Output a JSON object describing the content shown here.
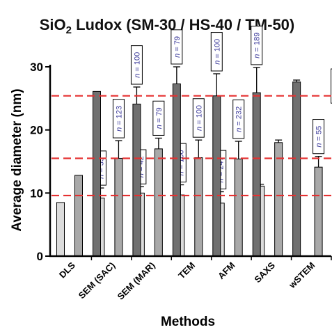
{
  "chart_data": {
    "type": "bar",
    "title_main": "SiO",
    "title_sub": "2",
    "title_rest": " Ludox (SM-30 / HS-40 / TM-50)",
    "xlabel": "Methods",
    "ylabel": "Average diameter (nm)",
    "ylim": [
      0,
      30
    ],
    "yticks": [
      0,
      10,
      20,
      30
    ],
    "categories": [
      "DLS",
      "SEM (SAC)",
      "SEM (MAR)",
      "TEM",
      "AFM",
      "SAXS",
      "wSTEM"
    ],
    "series": [
      {
        "name": "SM-30",
        "color": "#dcdcdc",
        "values": [
          8.5,
          9.2,
          10.0,
          9.7,
          8.4,
          11.1,
          null
        ],
        "errors": [
          0,
          1.6,
          1.0,
          1.6,
          1.8,
          0.3,
          null
        ],
        "n": [
          null,
          "35",
          "42",
          "100",
          "247",
          null,
          null
        ]
      },
      {
        "name": "HS-40",
        "color": "#a9a9a9",
        "values": [
          12.8,
          15.5,
          17.0,
          15.6,
          15.4,
          18.0,
          14.1
        ],
        "errors": [
          0,
          2.8,
          1.7,
          2.8,
          2.8,
          0.4,
          1.7
        ],
        "n": [
          null,
          "123",
          "79",
          "100",
          "232",
          null,
          "55"
        ]
      },
      {
        "name": "TM-50",
        "color": "#707070",
        "values": [
          26.1,
          24.1,
          27.3,
          25.4,
          25.9,
          27.6,
          22.0
        ],
        "errors": [
          0,
          2.7,
          2.7,
          3.5,
          4.0,
          0.3,
          1.8
        ],
        "n": [
          null,
          "100",
          "79",
          "100",
          "189",
          null,
          "30"
        ]
      }
    ],
    "reference_lines": [
      9.6,
      15.5,
      25.4
    ],
    "reference_color": "#e53030",
    "n_prefix": "n",
    "n_sep": " = "
  }
}
